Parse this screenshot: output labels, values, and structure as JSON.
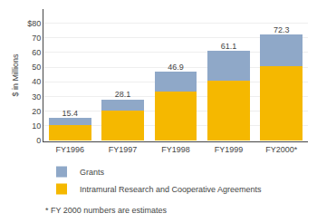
{
  "chart_data": {
    "type": "bar",
    "stacked": true,
    "categories": [
      "FY1996",
      "FY1997",
      "FY1998",
      "FY1999",
      "FY2000*"
    ],
    "series": [
      {
        "name": "Intramural Research and Cooperative Agreements",
        "color": "#f5b800",
        "values": [
          10.5,
          20.5,
          33.5,
          40.5,
          50.5
        ]
      },
      {
        "name": "Grants",
        "color": "#8fa8c8",
        "values": [
          4.9,
          7.6,
          13.4,
          20.6,
          21.8
        ]
      }
    ],
    "totals": [
      15.4,
      28.1,
      46.9,
      61.1,
      72.3
    ],
    "ylabel": "$ in Millions",
    "ylim": [
      -0.5,
      89.5
    ],
    "yticks": [
      0,
      10,
      20,
      30,
      40,
      50,
      60,
      70,
      {
        "value": 80,
        "label": "$80"
      }
    ],
    "grid": true,
    "legend": "bottom",
    "annotations": [
      "* FY 2000 numbers are estimates"
    ]
  }
}
